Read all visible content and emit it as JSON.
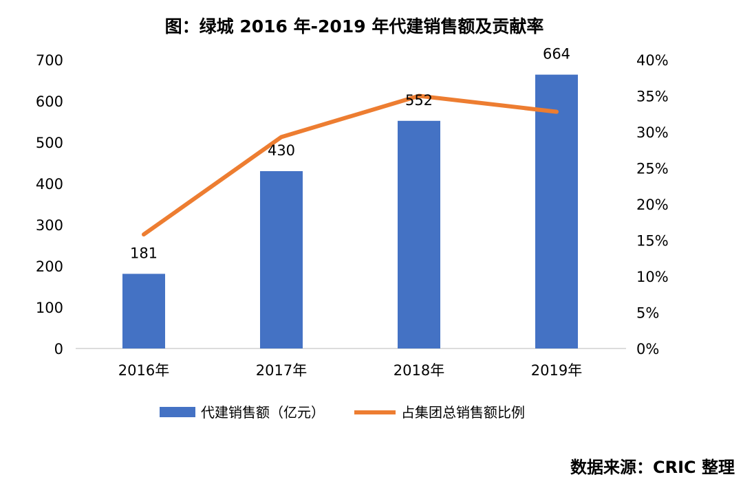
{
  "chart_data": {
    "type": "bar+line",
    "title": "图：绿城 2016 年-2019 年代建销售额及贡献率",
    "categories": [
      "2016年",
      "2017年",
      "2018年",
      "2019年"
    ],
    "series": [
      {
        "name": "代建销售额（亿元）",
        "type": "bar",
        "axis": "left",
        "values": [
          181,
          430,
          552,
          664
        ],
        "color": "#4472C4"
      },
      {
        "name": "占集团总销售额比例",
        "type": "line",
        "axis": "right",
        "values": [
          15.8,
          29.3,
          35.0,
          32.8
        ],
        "unit": "%",
        "color": "#ED7D31"
      }
    ],
    "left_axis": {
      "ylim": [
        0,
        700
      ],
      "ticks": [
        "0",
        "100",
        "200",
        "300",
        "400",
        "500",
        "600",
        "700"
      ]
    },
    "right_axis": {
      "ylim": [
        0,
        40
      ],
      "ticks": [
        "0%",
        "5%",
        "10%",
        "15%",
        "20%",
        "25%",
        "30%",
        "35%",
        "40%"
      ]
    },
    "data_labels": [
      "181",
      "430",
      "552",
      "664"
    ],
    "grid": false,
    "legend": "bottom",
    "source": "数据来源：CRIC 整理"
  }
}
